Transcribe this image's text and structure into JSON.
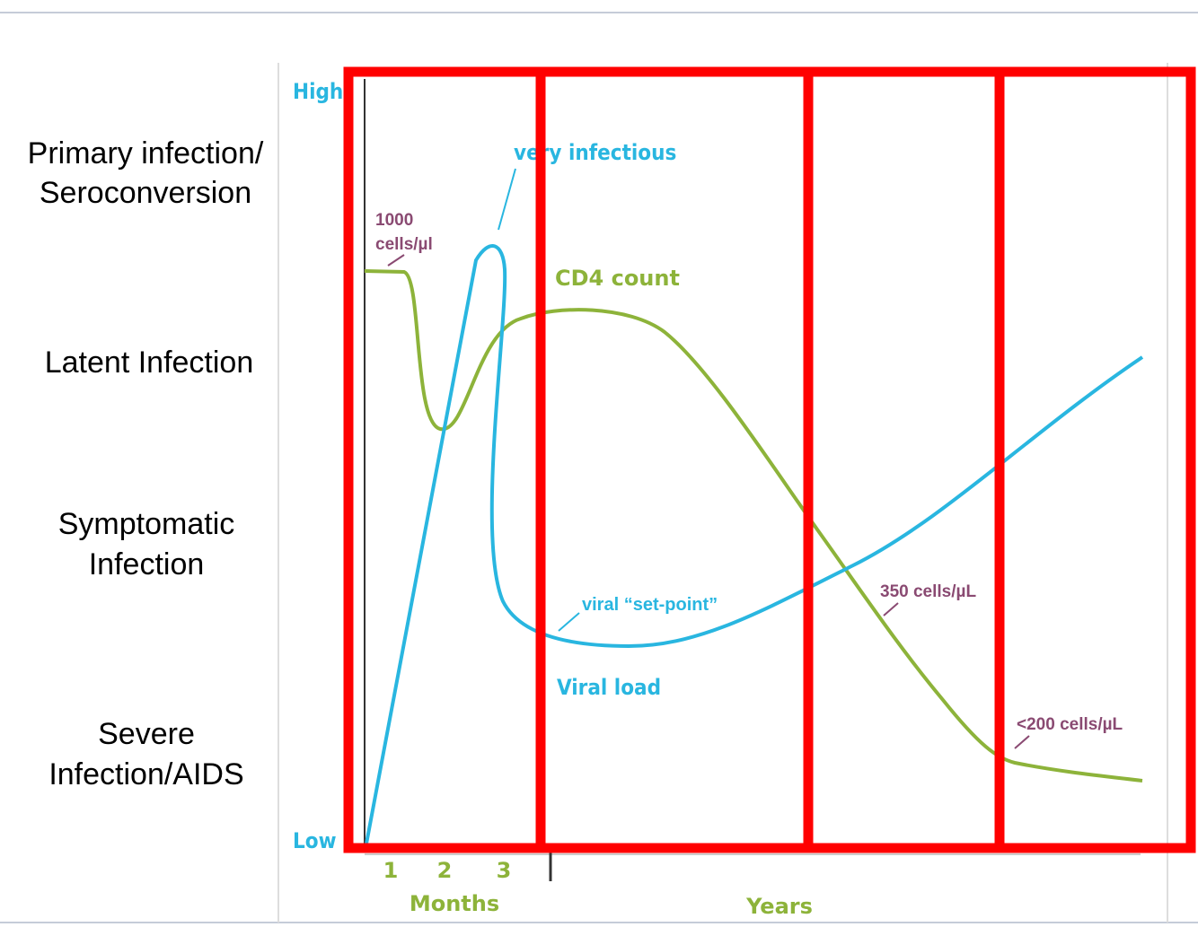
{
  "stages": [
    "Primary infection/\nSeroconversion",
    "Latent Infection",
    "Symptomatic\nInfection",
    "Severe\nInfection/AIDS"
  ],
  "axis": {
    "high": "High",
    "low": "Low",
    "x_ticks": [
      "1",
      "2",
      "3"
    ],
    "months": "Months",
    "years": "Years"
  },
  "annotations": {
    "very_infectious": "very infectious",
    "cd4_start": "1000\ncells/µl",
    "cd4_count": "CD4 count",
    "set_point": "viral “set-point”",
    "viral_load": "Viral load",
    "cd4_350": "350 cells/µL",
    "cd4_200": "<200 cells/µL"
  }
}
